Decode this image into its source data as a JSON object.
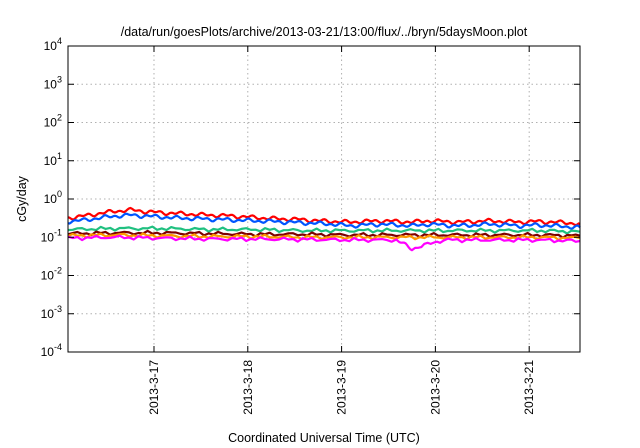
{
  "chart_data": {
    "type": "line",
    "title": "/data/run/goesPlots/archive/2013-03-21/13:00/flux/../bryn/5daysMoon.plot",
    "xlabel": "Coordinated Universal Time (UTC)",
    "ylabel": "cGy/day",
    "yscale": "log",
    "ylim": [
      0.0001,
      10000
    ],
    "xlim": [
      "2013-03-16T02:00",
      "2013-03-21T13:00"
    ],
    "grid": true,
    "legend": "none",
    "y_ticks": [
      {
        "base": "10",
        "exp": "-4",
        "value": 0.0001
      },
      {
        "base": "10",
        "exp": "-3",
        "value": 0.001
      },
      {
        "base": "10",
        "exp": "-2",
        "value": 0.01
      },
      {
        "base": "10",
        "exp": "-1",
        "value": 0.1
      },
      {
        "base": "10",
        "exp": "0",
        "value": 1
      },
      {
        "base": "10",
        "exp": "1",
        "value": 10
      },
      {
        "base": "10",
        "exp": "2",
        "value": 100
      },
      {
        "base": "10",
        "exp": "3",
        "value": 1000
      },
      {
        "base": "10",
        "exp": "4",
        "value": 10000
      }
    ],
    "x_ticks": [
      {
        "label": "2013-3-17",
        "value": "2013-03-17T00:00"
      },
      {
        "label": "2013-3-18",
        "value": "2013-03-18T00:00"
      },
      {
        "label": "2013-3-19",
        "value": "2013-03-19T00:00"
      },
      {
        "label": "2013-3-20",
        "value": "2013-03-20T00:00"
      },
      {
        "label": "2013-3-21",
        "value": "2013-03-21T00:00"
      }
    ],
    "series": [
      {
        "color": "#ff0000",
        "x": [
          "2013-03-16T02:00",
          "2013-03-16T06:00",
          "2013-03-16T10:00",
          "2013-03-16T14:00",
          "2013-03-16T18:00",
          "2013-03-16T22:00",
          "2013-03-17T02:00",
          "2013-03-17T06:00",
          "2013-03-17T10:00",
          "2013-03-17T14:00",
          "2013-03-17T18:00",
          "2013-03-17T22:00",
          "2013-03-18T02:00",
          "2013-03-18T06:00",
          "2013-03-18T10:00",
          "2013-03-18T14:00",
          "2013-03-18T18:00",
          "2013-03-18T22:00",
          "2013-03-19T02:00",
          "2013-03-19T06:00",
          "2013-03-19T10:00",
          "2013-03-19T14:00",
          "2013-03-19T18:00",
          "2013-03-19T22:00",
          "2013-03-20T02:00",
          "2013-03-20T06:00",
          "2013-03-20T10:00",
          "2013-03-20T14:00",
          "2013-03-20T18:00",
          "2013-03-20T22:00",
          "2013-03-21T02:00",
          "2013-03-21T06:00",
          "2013-03-21T10:00",
          "2013-03-21T13:00"
        ],
        "y": [
          0.32,
          0.36,
          0.42,
          0.48,
          0.52,
          0.47,
          0.44,
          0.42,
          0.4,
          0.38,
          0.37,
          0.35,
          0.33,
          0.31,
          0.3,
          0.29,
          0.27,
          0.26,
          0.25,
          0.26,
          0.27,
          0.26,
          0.25,
          0.27,
          0.26,
          0.25,
          0.26,
          0.27,
          0.26,
          0.25,
          0.26,
          0.25,
          0.24,
          0.22
        ]
      },
      {
        "color": "#0055ff",
        "x": [
          "2013-03-16T02:00",
          "2013-03-16T06:00",
          "2013-03-16T10:00",
          "2013-03-16T14:00",
          "2013-03-16T18:00",
          "2013-03-16T22:00",
          "2013-03-17T02:00",
          "2013-03-17T06:00",
          "2013-03-17T10:00",
          "2013-03-17T14:00",
          "2013-03-17T18:00",
          "2013-03-17T22:00",
          "2013-03-18T02:00",
          "2013-03-18T06:00",
          "2013-03-18T10:00",
          "2013-03-18T14:00",
          "2013-03-18T18:00",
          "2013-03-18T22:00",
          "2013-03-19T02:00",
          "2013-03-19T06:00",
          "2013-03-19T10:00",
          "2013-03-19T14:00",
          "2013-03-19T18:00",
          "2013-03-19T22:00",
          "2013-03-20T02:00",
          "2013-03-20T06:00",
          "2013-03-20T10:00",
          "2013-03-20T14:00",
          "2013-03-20T18:00",
          "2013-03-20T22:00",
          "2013-03-21T02:00",
          "2013-03-21T06:00",
          "2013-03-21T10:00",
          "2013-03-21T13:00"
        ],
        "y": [
          0.26,
          0.28,
          0.32,
          0.36,
          0.38,
          0.36,
          0.34,
          0.32,
          0.31,
          0.3,
          0.29,
          0.28,
          0.27,
          0.26,
          0.25,
          0.24,
          0.23,
          0.22,
          0.2,
          0.21,
          0.22,
          0.21,
          0.2,
          0.22,
          0.21,
          0.2,
          0.21,
          0.22,
          0.21,
          0.2,
          0.21,
          0.2,
          0.19,
          0.18
        ]
      },
      {
        "color": "#20c080",
        "x": [
          "2013-03-16T02:00",
          "2013-03-16T14:00",
          "2013-03-17T02:00",
          "2013-03-17T14:00",
          "2013-03-18T02:00",
          "2013-03-18T14:00",
          "2013-03-19T02:00",
          "2013-03-19T14:00",
          "2013-03-20T02:00",
          "2013-03-20T14:00",
          "2013-03-21T02:00",
          "2013-03-21T13:00"
        ],
        "y": [
          0.16,
          0.17,
          0.17,
          0.16,
          0.16,
          0.15,
          0.15,
          0.15,
          0.15,
          0.15,
          0.15,
          0.14
        ]
      },
      {
        "color": "#800000",
        "x": [
          "2013-03-16T02:00",
          "2013-03-16T14:00",
          "2013-03-17T02:00",
          "2013-03-17T14:00",
          "2013-03-18T02:00",
          "2013-03-18T14:00",
          "2013-03-19T02:00",
          "2013-03-19T14:00",
          "2013-03-20T02:00",
          "2013-03-20T14:00",
          "2013-03-21T02:00",
          "2013-03-21T13:00"
        ],
        "y": [
          0.125,
          0.13,
          0.13,
          0.125,
          0.12,
          0.12,
          0.115,
          0.115,
          0.115,
          0.115,
          0.115,
          0.11
        ]
      },
      {
        "color": "#ff9900",
        "x": [
          "2013-03-16T02:00",
          "2013-03-16T14:00",
          "2013-03-17T02:00",
          "2013-03-17T14:00",
          "2013-03-18T02:00",
          "2013-03-18T14:00",
          "2013-03-19T02:00",
          "2013-03-19T14:00",
          "2013-03-20T02:00",
          "2013-03-20T14:00",
          "2013-03-21T02:00",
          "2013-03-21T13:00"
        ],
        "y": [
          0.11,
          0.115,
          0.11,
          0.105,
          0.105,
          0.1,
          0.1,
          0.1,
          0.1,
          0.1,
          0.1,
          0.095
        ]
      },
      {
        "color": "#ff00ff",
        "x": [
          "2013-03-16T02:00",
          "2013-03-16T14:00",
          "2013-03-17T02:00",
          "2013-03-17T14:00",
          "2013-03-18T02:00",
          "2013-03-18T14:00",
          "2013-03-19T02:00",
          "2013-03-19T14:00",
          "2013-03-19T18:00",
          "2013-03-20T02:00",
          "2013-03-20T14:00",
          "2013-03-21T02:00",
          "2013-03-21T13:00"
        ],
        "y": [
          0.095,
          0.1,
          0.095,
          0.09,
          0.09,
          0.088,
          0.085,
          0.085,
          0.05,
          0.085,
          0.085,
          0.085,
          0.08
        ]
      }
    ]
  }
}
